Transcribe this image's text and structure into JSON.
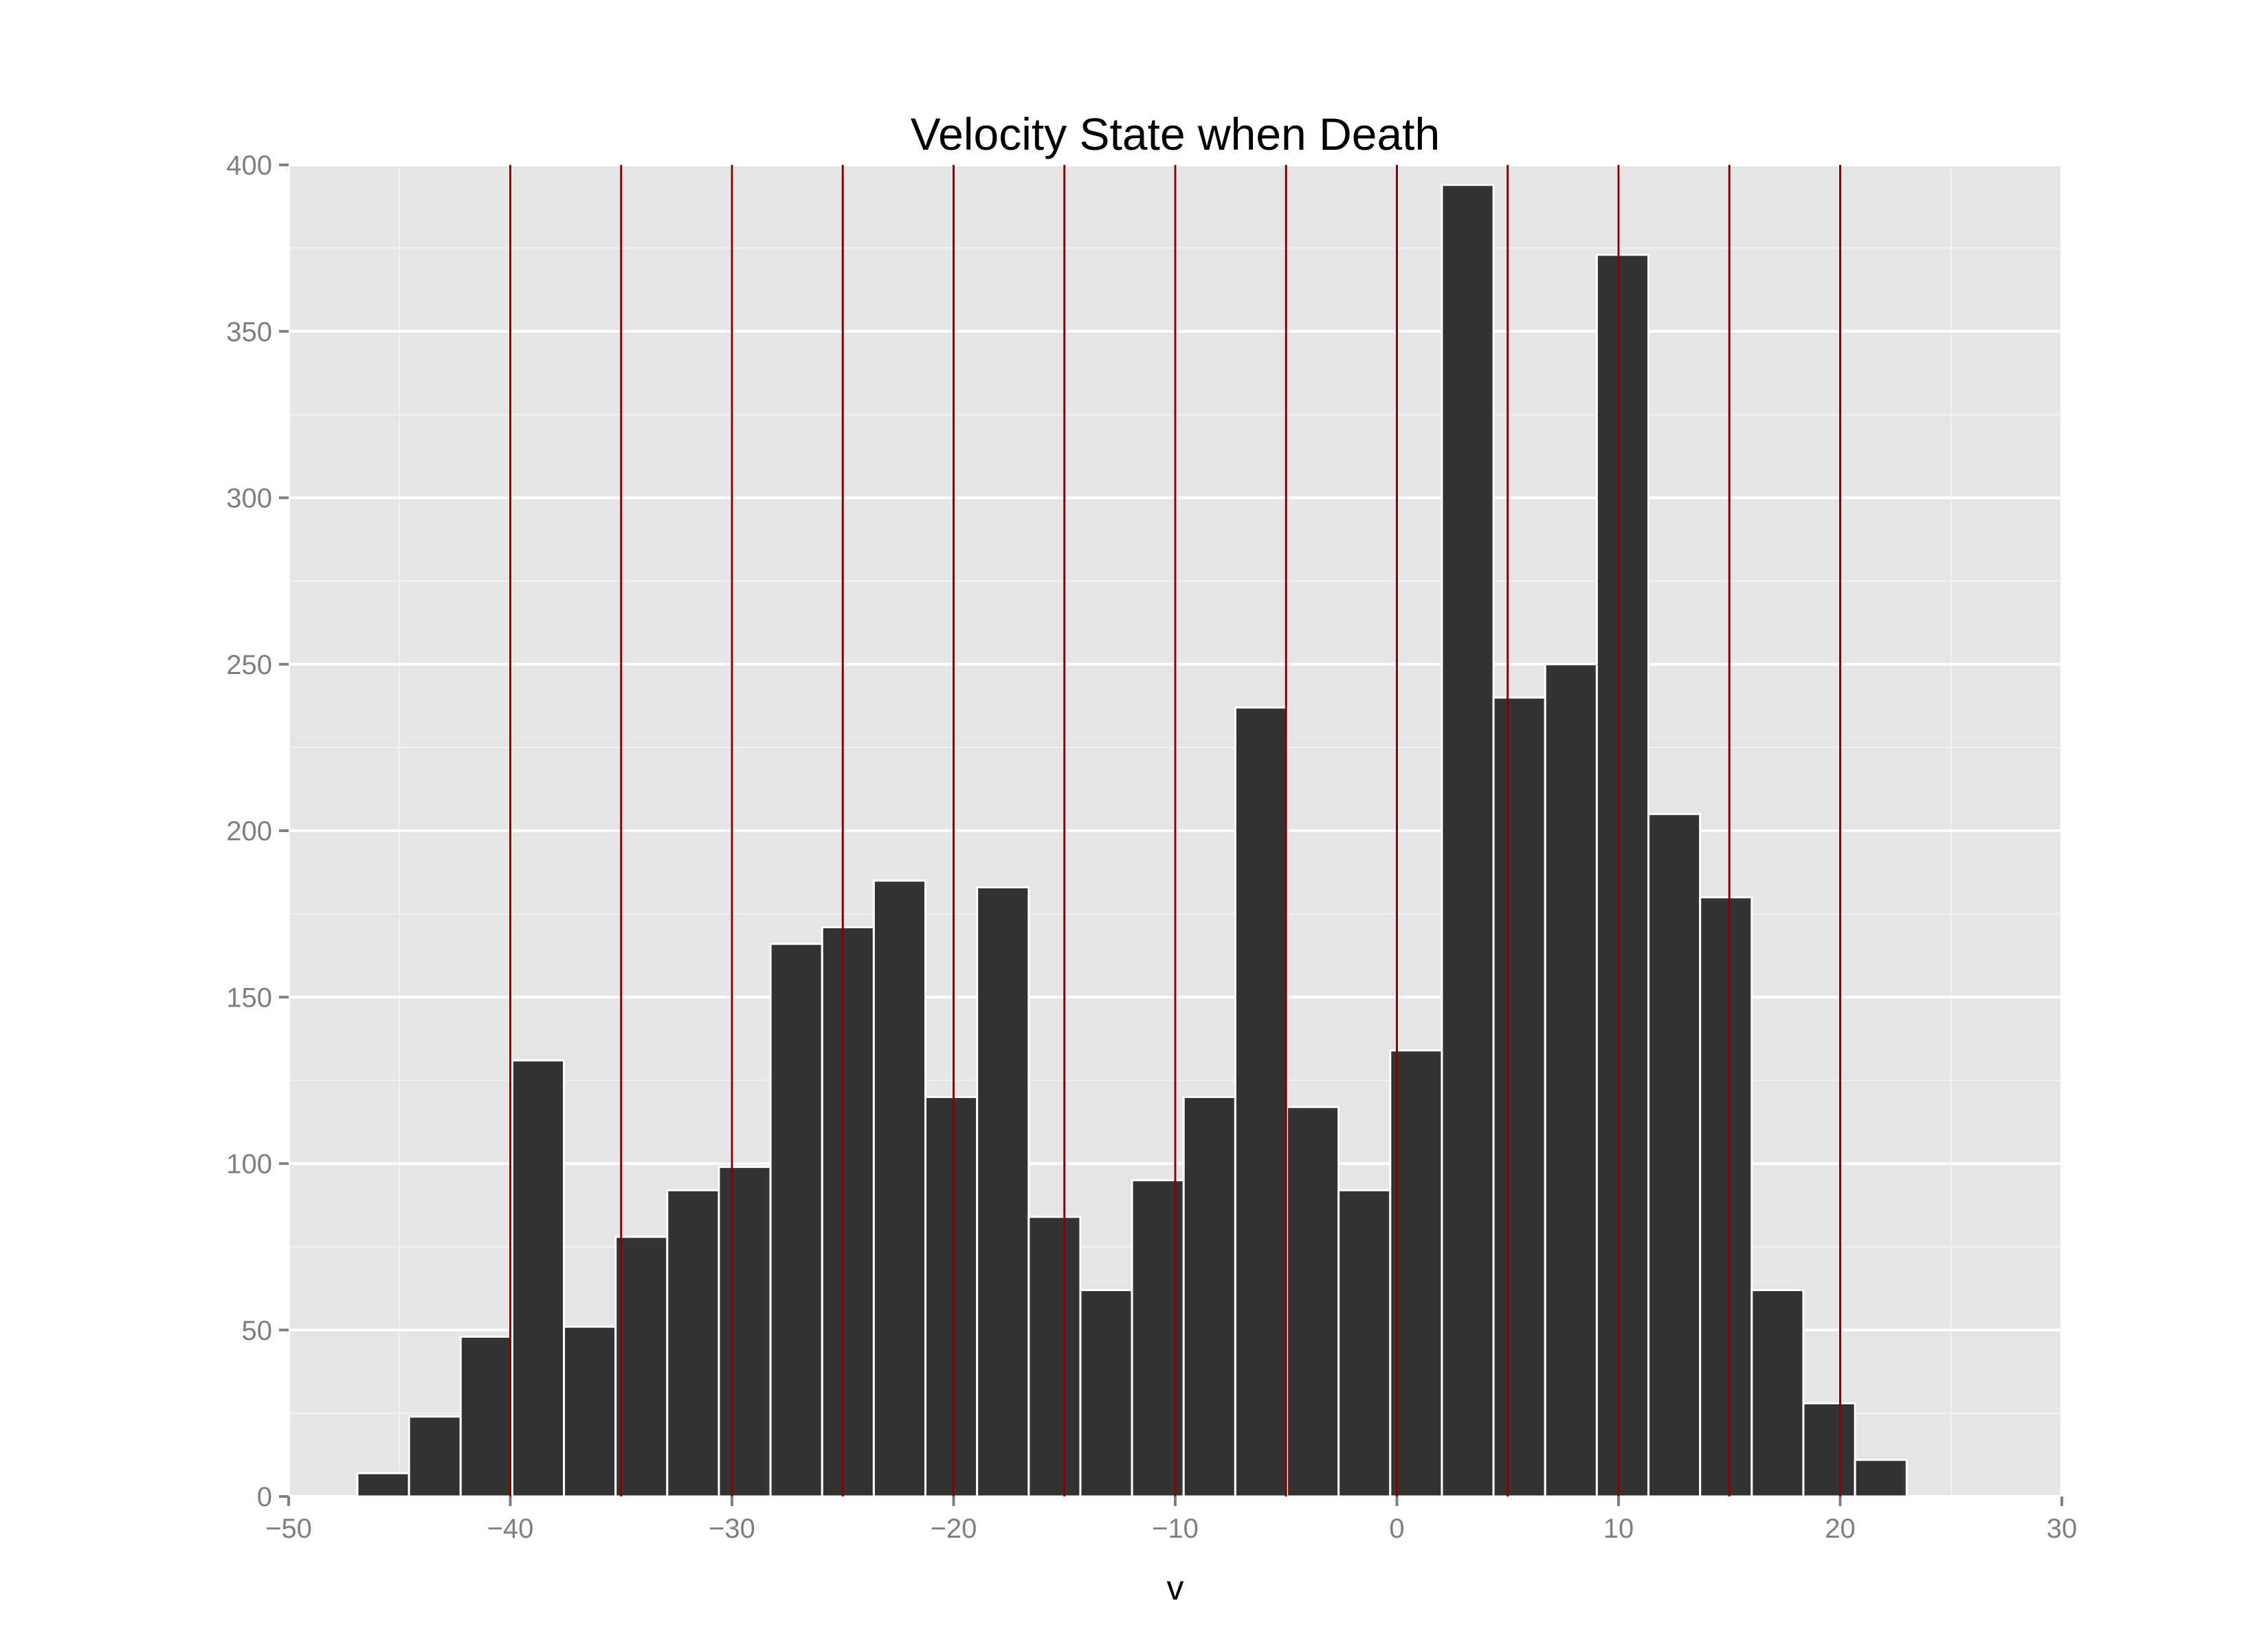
{
  "chart_data": {
    "type": "bar",
    "title": "Velocity State when Death",
    "xlabel": "v",
    "ylabel": "",
    "xlim": [
      -50,
      30
    ],
    "ylim": [
      0,
      400
    ],
    "x_ticks": [
      -50,
      -40,
      -30,
      -20,
      -10,
      0,
      10,
      20,
      30
    ],
    "x_tick_labels": [
      "−50",
      "−40",
      "−30",
      "−20",
      "−10",
      "0",
      "10",
      "20",
      "30"
    ],
    "y_ticks": [
      0,
      50,
      100,
      150,
      200,
      250,
      300,
      350,
      400
    ],
    "y_tick_labels": [
      "0",
      "50",
      "100",
      "150",
      "200",
      "250",
      "300",
      "350",
      "400"
    ],
    "grid": true,
    "bin_width": 2.33,
    "bins": [
      {
        "start": -46.9,
        "value": 7
      },
      {
        "start": -44.57,
        "value": 24
      },
      {
        "start": -42.24,
        "value": 48
      },
      {
        "start": -39.91,
        "value": 131
      },
      {
        "start": -37.58,
        "value": 51
      },
      {
        "start": -35.25,
        "value": 78
      },
      {
        "start": -32.92,
        "value": 92
      },
      {
        "start": -30.59,
        "value": 99
      },
      {
        "start": -28.26,
        "value": 166
      },
      {
        "start": -25.93,
        "value": 171
      },
      {
        "start": -23.6,
        "value": 185
      },
      {
        "start": -21.27,
        "value": 120
      },
      {
        "start": -18.94,
        "value": 183
      },
      {
        "start": -16.61,
        "value": 84
      },
      {
        "start": -14.28,
        "value": 62
      },
      {
        "start": -11.95,
        "value": 95
      },
      {
        "start": -9.62,
        "value": 120
      },
      {
        "start": -7.29,
        "value": 237
      },
      {
        "start": -4.96,
        "value": 117
      },
      {
        "start": -2.63,
        "value": 92
      },
      {
        "start": -0.3,
        "value": 134
      },
      {
        "start": 2.03,
        "value": 394
      },
      {
        "start": 4.36,
        "value": 240
      },
      {
        "start": 6.69,
        "value": 250
      },
      {
        "start": 9.02,
        "value": 373
      },
      {
        "start": 11.35,
        "value": 205
      },
      {
        "start": 13.68,
        "value": 180
      },
      {
        "start": 16.01,
        "value": 62
      },
      {
        "start": 18.34,
        "value": 28
      },
      {
        "start": 20.67,
        "value": 11
      }
    ],
    "vlines": [
      -40,
      -35,
      -30,
      -25,
      -20,
      -15,
      -10,
      -5,
      0,
      5,
      10,
      15,
      20
    ],
    "colors": {
      "panel_background": "#e5e5e5",
      "grid_major": "#ffffff",
      "grid_minor": "#f2f2f2",
      "bar_fill": "#333333",
      "bar_outline": "#ffffff",
      "vline": "#8b0000",
      "tick_label": "#7f7f7f",
      "axis_tick": "#7f7f7f"
    }
  }
}
